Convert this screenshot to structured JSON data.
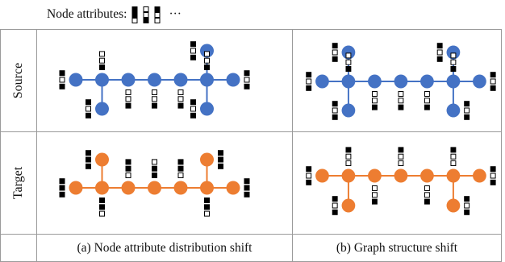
{
  "legend": {
    "label": "Node attributes:",
    "ellipsis": "···"
  },
  "rows": {
    "source": "Source",
    "target": "Target"
  },
  "captions": {
    "a": "(a) Node attribute distribution shift",
    "b": "(b) Graph structure shift"
  },
  "colors": {
    "source_node": "#4472C4",
    "target_node": "#ED7D31",
    "border": "#9a9a9a"
  },
  "legend_attrs": [
    [
      1,
      1,
      0
    ],
    [
      0,
      0,
      1
    ],
    [
      1,
      0,
      0
    ]
  ],
  "graphs": {
    "a_source": {
      "color": "source",
      "nodes": [
        [
          1,
          0
        ],
        [
          2,
          0
        ],
        [
          3,
          0
        ],
        [
          4,
          0
        ],
        [
          5,
          0
        ],
        [
          6,
          0
        ],
        [
          7,
          0
        ],
        [
          2,
          1
        ],
        [
          6,
          -1
        ],
        [
          6,
          1
        ]
      ],
      "edges": [
        [
          0,
          1
        ],
        [
          1,
          2
        ],
        [
          2,
          3
        ],
        [
          3,
          4
        ],
        [
          4,
          5
        ],
        [
          5,
          6
        ],
        [
          1,
          7
        ],
        [
          5,
          8
        ],
        [
          5,
          9
        ]
      ],
      "attrs": [
        {
          "node": 0,
          "pos": "left",
          "v": [
            1,
            0,
            1
          ]
        },
        {
          "node": 1,
          "pos": "up",
          "v": [
            0,
            0,
            1
          ]
        },
        {
          "node": 2,
          "pos": "down",
          "v": [
            0,
            0,
            1
          ]
        },
        {
          "node": 3,
          "pos": "down",
          "v": [
            0,
            0,
            1
          ]
        },
        {
          "node": 4,
          "pos": "down",
          "v": [
            0,
            0,
            1
          ]
        },
        {
          "node": 5,
          "pos": "up",
          "v": [
            0,
            0,
            1
          ]
        },
        {
          "node": 6,
          "pos": "right",
          "v": [
            1,
            0,
            1
          ]
        },
        {
          "node": 7,
          "pos": "left",
          "v": [
            1,
            0,
            1
          ]
        },
        {
          "node": 8,
          "pos": "left",
          "v": [
            1,
            0,
            1
          ]
        },
        {
          "node": 9,
          "pos": "left",
          "v": [
            1,
            0,
            1
          ]
        }
      ]
    },
    "b_source": {
      "color": "source",
      "nodes": [
        [
          1,
          0
        ],
        [
          2,
          0
        ],
        [
          3,
          0
        ],
        [
          4,
          0
        ],
        [
          5,
          0
        ],
        [
          6,
          0
        ],
        [
          7,
          0
        ],
        [
          2,
          -1
        ],
        [
          2,
          1
        ],
        [
          6,
          -1
        ],
        [
          6,
          1
        ]
      ],
      "edges": [
        [
          0,
          1
        ],
        [
          1,
          2
        ],
        [
          2,
          3
        ],
        [
          3,
          4
        ],
        [
          4,
          5
        ],
        [
          5,
          6
        ],
        [
          1,
          7
        ],
        [
          1,
          8
        ],
        [
          5,
          9
        ],
        [
          5,
          10
        ]
      ],
      "attrs": [
        {
          "node": 0,
          "pos": "left",
          "v": [
            1,
            0,
            1
          ]
        },
        {
          "node": 1,
          "pos": "up",
          "v": [
            0,
            0,
            1
          ]
        },
        {
          "node": 2,
          "pos": "down",
          "v": [
            0,
            0,
            1
          ]
        },
        {
          "node": 3,
          "pos": "down",
          "v": [
            0,
            0,
            1
          ]
        },
        {
          "node": 4,
          "pos": "down",
          "v": [
            0,
            0,
            1
          ]
        },
        {
          "node": 5,
          "pos": "up",
          "v": [
            0,
            0,
            1
          ]
        },
        {
          "node": 6,
          "pos": "right",
          "v": [
            1,
            0,
            1
          ]
        },
        {
          "node": 7,
          "pos": "left",
          "v": [
            1,
            0,
            1
          ]
        },
        {
          "node": 8,
          "pos": "left",
          "v": [
            1,
            0,
            1
          ]
        },
        {
          "node": 9,
          "pos": "left",
          "v": [
            1,
            0,
            1
          ]
        },
        {
          "node": 10,
          "pos": "right",
          "v": [
            1,
            0,
            1
          ]
        }
      ]
    },
    "a_target": {
      "color": "target",
      "nodes": [
        [
          1,
          0
        ],
        [
          2,
          0
        ],
        [
          3,
          0
        ],
        [
          4,
          0
        ],
        [
          5,
          0
        ],
        [
          6,
          0
        ],
        [
          7,
          0
        ],
        [
          2,
          -1
        ],
        [
          6,
          -1
        ]
      ],
      "edges": [
        [
          0,
          1
        ],
        [
          1,
          2
        ],
        [
          2,
          3
        ],
        [
          3,
          4
        ],
        [
          4,
          5
        ],
        [
          5,
          6
        ],
        [
          1,
          7
        ],
        [
          5,
          8
        ]
      ],
      "attrs": [
        {
          "node": 0,
          "pos": "left",
          "v": [
            1,
            1,
            1
          ]
        },
        {
          "node": 1,
          "pos": "down",
          "v": [
            1,
            1,
            0
          ]
        },
        {
          "node": 2,
          "pos": "up",
          "v": [
            1,
            1,
            0
          ]
        },
        {
          "node": 3,
          "pos": "up",
          "v": [
            0,
            1,
            1
          ]
        },
        {
          "node": 4,
          "pos": "up",
          "v": [
            1,
            1,
            0
          ]
        },
        {
          "node": 5,
          "pos": "down",
          "v": [
            1,
            1,
            0
          ]
        },
        {
          "node": 6,
          "pos": "right",
          "v": [
            1,
            1,
            1
          ]
        },
        {
          "node": 7,
          "pos": "left",
          "v": [
            1,
            1,
            1
          ]
        },
        {
          "node": 8,
          "pos": "right",
          "v": [
            1,
            1,
            1
          ]
        }
      ]
    },
    "b_target": {
      "color": "target",
      "nodes": [
        [
          1,
          0
        ],
        [
          2,
          0
        ],
        [
          3,
          0
        ],
        [
          4,
          0
        ],
        [
          5,
          0
        ],
        [
          6,
          0
        ],
        [
          7,
          0
        ],
        [
          2,
          1
        ],
        [
          6,
          1
        ]
      ],
      "edges": [
        [
          0,
          1
        ],
        [
          1,
          2
        ],
        [
          2,
          3
        ],
        [
          3,
          4
        ],
        [
          4,
          5
        ],
        [
          5,
          6
        ],
        [
          1,
          7
        ],
        [
          5,
          8
        ]
      ],
      "attrs": [
        {
          "node": 0,
          "pos": "left",
          "v": [
            1,
            0,
            1
          ]
        },
        {
          "node": 1,
          "pos": "up",
          "v": [
            1,
            0,
            0
          ]
        },
        {
          "node": 2,
          "pos": "down",
          "v": [
            0,
            0,
            1
          ]
        },
        {
          "node": 3,
          "pos": "up",
          "v": [
            1,
            0,
            0
          ]
        },
        {
          "node": 4,
          "pos": "down",
          "v": [
            0,
            0,
            1
          ]
        },
        {
          "node": 5,
          "pos": "up",
          "v": [
            1,
            0,
            0
          ]
        },
        {
          "node": 6,
          "pos": "right",
          "v": [
            1,
            0,
            1
          ]
        },
        {
          "node": 7,
          "pos": "left",
          "v": [
            1,
            0,
            1
          ]
        },
        {
          "node": 8,
          "pos": "right",
          "v": [
            1,
            0,
            1
          ]
        }
      ]
    }
  }
}
